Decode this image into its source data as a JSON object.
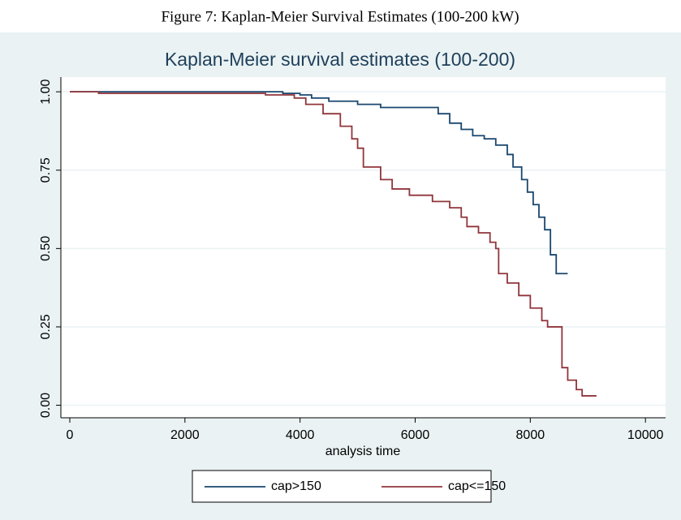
{
  "figure_caption": "Figure 7: Kaplan-Meier Survival Estimates (100-200 kW)",
  "chart_data": {
    "type": "step",
    "title": "Kaplan-Meier survival estimates (100-200)",
    "x_label": "analysis time",
    "xlim": [
      -155,
      10350
    ],
    "ylim": [
      -0.04,
      1.047
    ],
    "xticks": [
      0,
      2000,
      4000,
      6000,
      8000,
      10000
    ],
    "yticks": [
      {
        "value": 0,
        "label": "0.00"
      },
      {
        "value": 0.25,
        "label": "0.25"
      },
      {
        "value": 0.5,
        "label": "0.50"
      },
      {
        "value": 0.75,
        "label": "0.75"
      },
      {
        "value": 1,
        "label": "1.00"
      }
    ],
    "grid": true,
    "legend": "bottom",
    "series": [
      {
        "name": "cap>150",
        "color": "#1a476f",
        "x": [
          0,
          3700,
          4000,
          4200,
          4500,
          5000,
          5400,
          6200,
          6400,
          6600,
          6800,
          7000,
          7200,
          7400,
          7600,
          7700,
          7850,
          7950,
          8050,
          8150,
          8250,
          8350,
          8450,
          8650
        ],
        "values": [
          1.0,
          0.995,
          0.99,
          0.98,
          0.97,
          0.96,
          0.95,
          0.95,
          0.93,
          0.9,
          0.88,
          0.86,
          0.85,
          0.83,
          0.8,
          0.76,
          0.72,
          0.68,
          0.64,
          0.6,
          0.56,
          0.48,
          0.42,
          0.42
        ]
      },
      {
        "name": "cap<=150",
        "color": "#90353b",
        "x": [
          0,
          500,
          3400,
          3900,
          4100,
          4400,
          4700,
          4900,
          5000,
          5100,
          5400,
          5600,
          5900,
          6300,
          6600,
          6800,
          6900,
          7100,
          7300,
          7400,
          7450,
          7600,
          7800,
          8000,
          8200,
          8300,
          8500,
          8550,
          8650,
          8800,
          8900,
          9150
        ],
        "values": [
          1.0,
          0.995,
          0.99,
          0.98,
          0.96,
          0.93,
          0.89,
          0.85,
          0.82,
          0.76,
          0.72,
          0.69,
          0.67,
          0.65,
          0.63,
          0.6,
          0.57,
          0.55,
          0.52,
          0.5,
          0.42,
          0.39,
          0.35,
          0.31,
          0.27,
          0.25,
          0.25,
          0.12,
          0.08,
          0.05,
          0.03,
          0.03
        ]
      }
    ]
  }
}
